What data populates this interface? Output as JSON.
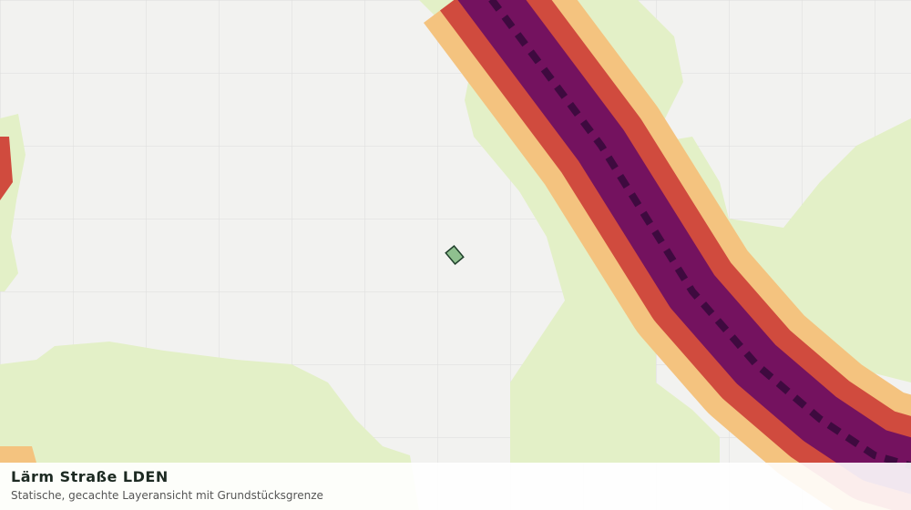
{
  "panel": {
    "title": "Lärm Straße LDEN",
    "subtitle": "Statische, gecachte Layeransicht mit Grundstücksgrenze"
  }
}
